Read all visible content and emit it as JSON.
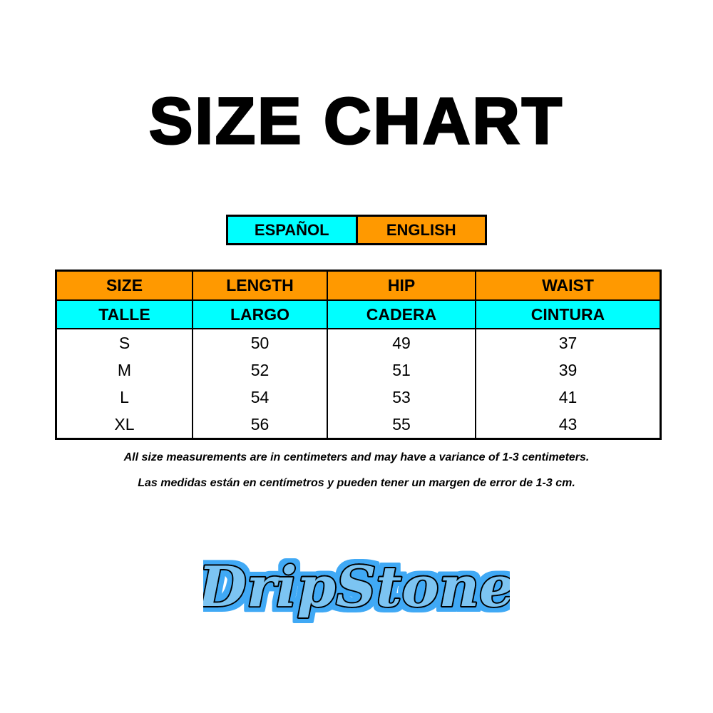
{
  "title": "SIZE CHART",
  "language_toggle": {
    "spanish": "ESPAÑOL",
    "english": "ENGLISH"
  },
  "colors": {
    "orange": "#FF9900",
    "cyan": "#00FFFF",
    "logo_blue": "#3fa9f5"
  },
  "table": {
    "headers_en": [
      "SIZE",
      "LENGTH",
      "HIP",
      "WAIST"
    ],
    "headers_es": [
      "TALLE",
      "LARGO",
      "CADERA",
      "CINTURA"
    ],
    "rows": [
      [
        "S",
        "50",
        "49",
        "37"
      ],
      [
        "M",
        "52",
        "51",
        "39"
      ],
      [
        "L",
        "54",
        "53",
        "41"
      ],
      [
        "XL",
        "56",
        "55",
        "43"
      ]
    ]
  },
  "notes": {
    "english": "All size measurements are in centimeters and may have a variance of 1-3 centimeters.",
    "spanish": "Las medidas están en centímetros y pueden tener un margen de error de 1-3 cm."
  },
  "logo": {
    "text": "DripStone"
  }
}
